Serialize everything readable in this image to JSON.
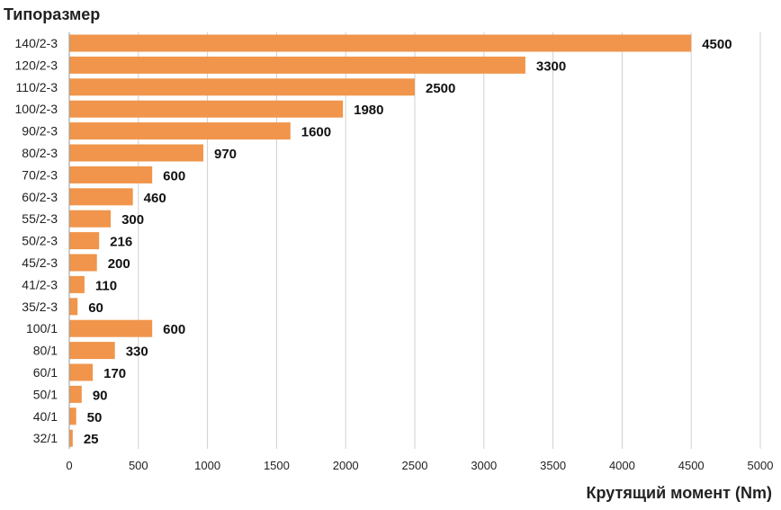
{
  "chart_data": {
    "type": "bar",
    "orientation": "horizontal",
    "title": "Типоразмер",
    "xlabel": "Крутящий момент (Nm)",
    "ylabel": "",
    "xlim": [
      0,
      5000
    ],
    "x_ticks": [
      0,
      500,
      1000,
      1500,
      2000,
      2500,
      3000,
      3500,
      4000,
      4500,
      5000
    ],
    "grid": "vertical",
    "legend": "none",
    "bar_color": "#F0954B",
    "categories": [
      "140/2-3",
      "120/2-3",
      "110/2-3",
      "100/2-3",
      "90/2-3",
      "80/2-3",
      "70/2-3",
      "60/2-3",
      "55/2-3",
      "50/2-3",
      "45/2-3",
      "41/2-3",
      "35/2-3",
      "100/1",
      "80/1",
      "60/1",
      "50/1",
      "40/1",
      "32/1"
    ],
    "values": [
      4500,
      3300,
      2500,
      1980,
      1600,
      970,
      600,
      460,
      300,
      216,
      200,
      110,
      60,
      600,
      330,
      170,
      90,
      50,
      25
    ]
  }
}
